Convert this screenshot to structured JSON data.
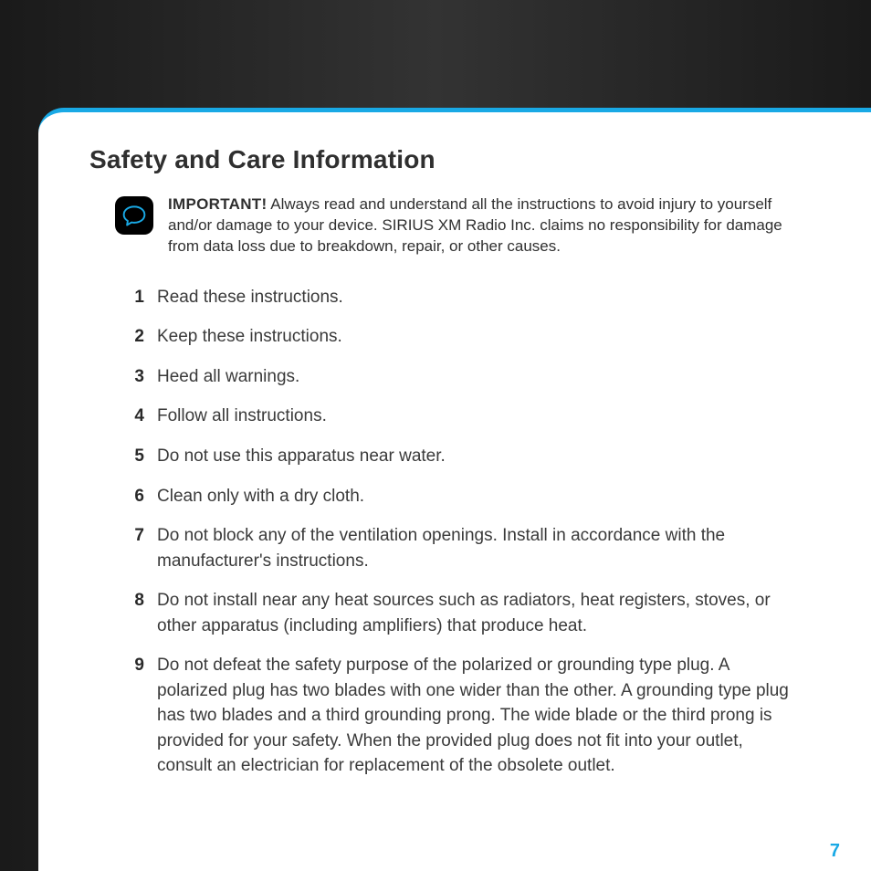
{
  "heading": "Safety and Care Information",
  "important": {
    "label": "IMPORTANT!",
    "text": "Always read and understand all the instructions to avoid injury to yourself and/or damage to your device. SIRIUS XM Radio Inc. claims no responsibility for damage from data loss due to breakdown, repair, or other causes."
  },
  "instructions": [
    "Read these instructions.",
    "Keep these instructions.",
    "Heed all warnings.",
    "Follow all instructions.",
    "Do not use this apparatus near water.",
    "Clean only with a dry cloth.",
    "Do not block any of the ventilation openings. Install in accordance with the manufacturer's instructions.",
    "Do not install near any heat sources such as radiators, heat registers, stoves, or other apparatus (including amplifiers) that produce heat.",
    "Do not defeat the safety purpose of the polarized or grounding type plug. A polarized plug has two blades with one wider than the other. A grounding type plug has two blades and a third grounding prong. The wide blade or the third prong is provided for your safety. When the provided plug does not fit into your outlet, consult an electrician for replacement of the obsolete outlet."
  ],
  "page_number": "7",
  "colors": {
    "accent": "#19a9e5",
    "background_dark": "#1a1a1a",
    "background_mid": "#333333",
    "paper": "#ffffff",
    "text": "#2f2f2f"
  }
}
